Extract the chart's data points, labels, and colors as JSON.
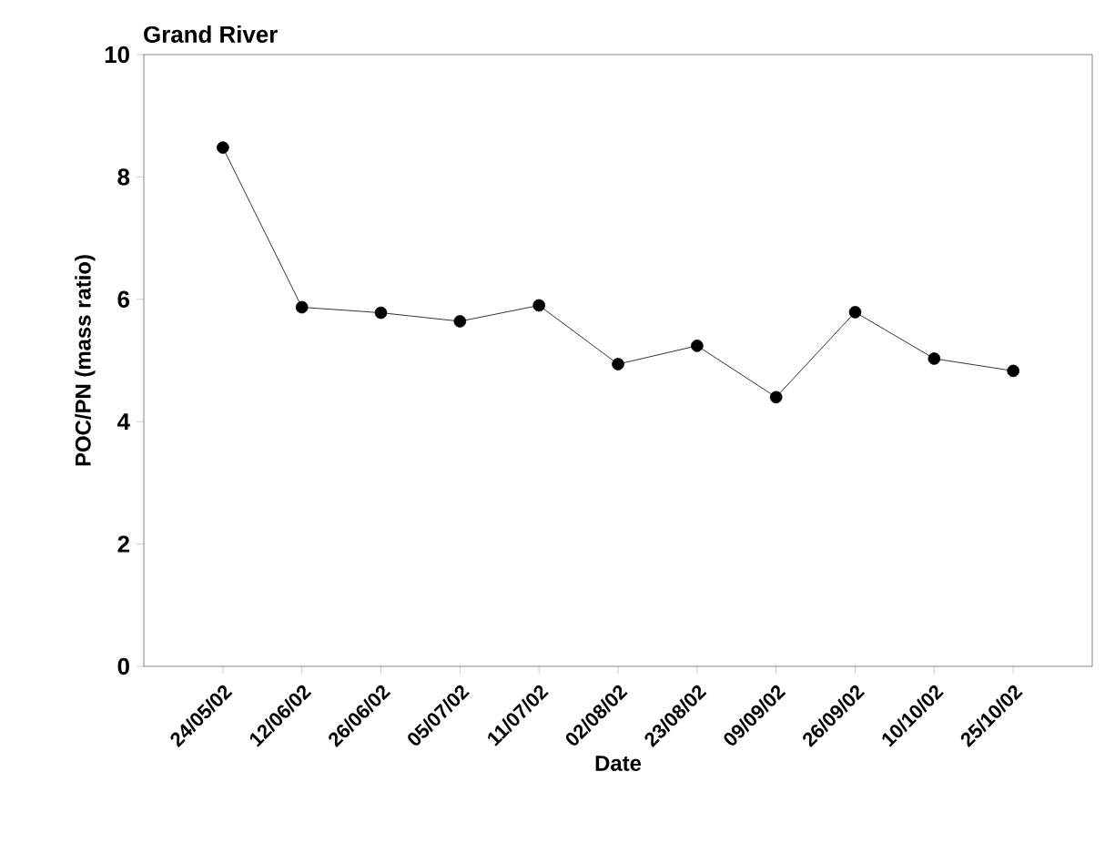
{
  "chart_data": {
    "type": "line",
    "title": "Grand River",
    "xlabel": "Date",
    "ylabel": "POC/PN (mass ratio)",
    "categories": [
      "24/05/02",
      "12/06/02",
      "26/06/02",
      "05/07/02",
      "11/07/02",
      "02/08/02",
      "23/08/02",
      "09/09/02",
      "26/09/02",
      "10/10/02",
      "25/10/02"
    ],
    "series": [
      {
        "color": "#000000",
        "values": [
          8.48,
          5.87,
          5.78,
          5.64,
          5.9,
          4.94,
          5.24,
          4.4,
          5.79,
          5.03,
          4.83
        ]
      }
    ],
    "ylim": [
      0,
      10
    ],
    "yticks": [
      0,
      2,
      4,
      6,
      8,
      10
    ],
    "marker": "circle",
    "line_style": "solid"
  }
}
